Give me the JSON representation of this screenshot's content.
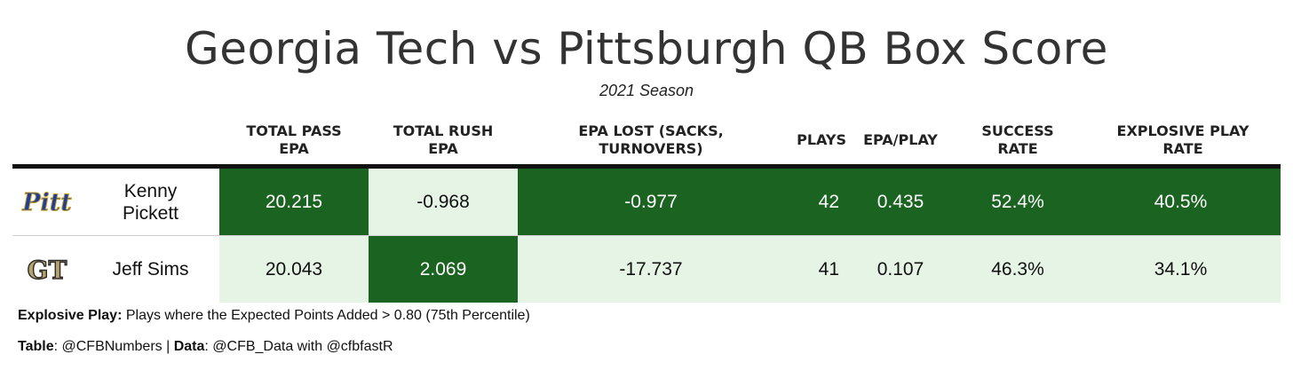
{
  "title": "Georgia Tech vs Pittsburgh QB Box Score",
  "subtitle": "2021 Season",
  "colors": {
    "dark_green": "#1b6320",
    "light_green": "#e6f4e6",
    "dark_text": "#ffffff",
    "light_text": "#111111"
  },
  "chart_data": {
    "type": "table",
    "columns": [
      "Total Pass\nEPA",
      "Total Rush\nEPA",
      "EPA Lost (sacks,\nturnovers)",
      "Plays",
      "EPA/Play",
      "Success\nRate",
      "Explosive Play\nRate"
    ],
    "rows": [
      {
        "team_logo": "Pitt",
        "player": "Kenny\nPickett",
        "values": [
          "20.215",
          "-0.968",
          "-0.977",
          "42",
          "0.435",
          "52.4%",
          "40.5%"
        ],
        "shade": [
          "dark",
          "light",
          "dark",
          "dark",
          "dark",
          "dark",
          "dark"
        ]
      },
      {
        "team_logo": "GT",
        "player": "Jeff Sims",
        "values": [
          "20.043",
          "2.069",
          "-17.737",
          "41",
          "0.107",
          "46.3%",
          "34.1%"
        ],
        "shade": [
          "light",
          "dark",
          "light",
          "light",
          "light",
          "light",
          "light"
        ]
      }
    ]
  },
  "footer": {
    "explosive_label": "Explosive Play:",
    "explosive_text": " Plays where the Expected Points Added > 0.80 (75th Percentile)",
    "table_label": "Table",
    "table_text": ": @CFBNumbers | ",
    "data_label": "Data",
    "data_text": ": @CFB_Data with @cfbfastR"
  }
}
